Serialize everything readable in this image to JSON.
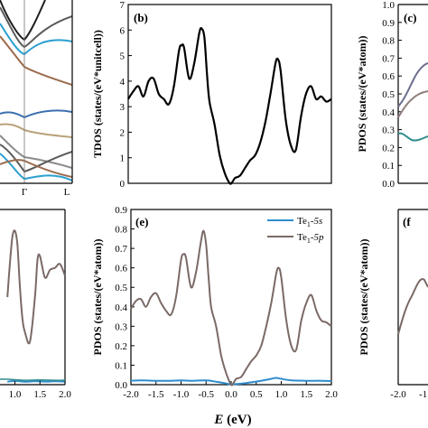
{
  "figure": {
    "xlabel_symbol": "E",
    "xlabel_unit": " (eV)"
  },
  "chart_data": [
    {
      "id": "a_bands",
      "type": "line",
      "panel_label": "",
      "xtick_labels": [
        "Γ",
        "L"
      ],
      "series_colors": [
        "#5b5b5b",
        "#2a9fd0",
        "#9c6b4e",
        "#1f1f1f",
        "#3b6fb0",
        "#b9a27a",
        "#8a8a8a"
      ]
    },
    {
      "id": "b_tdos",
      "type": "line",
      "panel_label": "(b)",
      "ylabel": "TDOS (states/(eV*unitcell))",
      "xlim": [
        -2.0,
        2.0
      ],
      "ylim": [
        0,
        7
      ],
      "yticks": [
        "0",
        "1",
        "2",
        "3",
        "4",
        "5",
        "6",
        "7"
      ],
      "series": [
        {
          "color": "#000000",
          "x": [
            -2.0,
            -1.9,
            -1.8,
            -1.7,
            -1.6,
            -1.5,
            -1.4,
            -1.3,
            -1.2,
            -1.1,
            -1.0,
            -0.95,
            -0.9,
            -0.8,
            -0.7,
            -0.6,
            -0.55,
            -0.5,
            -0.45,
            -0.4,
            -0.3,
            -0.2,
            -0.1,
            0.0,
            0.05,
            0.1,
            0.2,
            0.3,
            0.4,
            0.5,
            0.6,
            0.7,
            0.8,
            0.9,
            0.95,
            1.0,
            1.1,
            1.2,
            1.3,
            1.4,
            1.5,
            1.6,
            1.7,
            1.8,
            1.9,
            2.0
          ],
          "y": [
            3.3,
            3.6,
            3.8,
            3.4,
            4.0,
            4.1,
            3.5,
            3.3,
            3.1,
            3.8,
            5.2,
            5.4,
            5.3,
            4.1,
            4.7,
            5.9,
            6.05,
            5.7,
            4.3,
            3.2,
            2.3,
            1.1,
            0.4,
            0.0,
            0.05,
            0.2,
            0.3,
            0.6,
            0.9,
            1.1,
            1.6,
            2.4,
            3.5,
            4.7,
            4.85,
            4.4,
            2.5,
            1.5,
            1.3,
            2.6,
            3.5,
            3.8,
            3.3,
            3.4,
            3.2,
            3.3
          ]
        }
      ]
    },
    {
      "id": "c_pdos",
      "type": "line",
      "panel_label": "(c)",
      "ylabel": "PDOS (states/(eV*atom))",
      "ylim": [
        0,
        1.0
      ],
      "yticks": [
        "0.0",
        "0.1",
        "0.2",
        "0.3",
        "0.4",
        "0.5",
        "0.6",
        "0.7",
        "0.8",
        "0.9",
        "1.0"
      ]
    },
    {
      "id": "d_pdos",
      "type": "line",
      "panel_label": "",
      "xlim": [
        -2.0,
        2.0
      ],
      "xtick_labels": [
        "1.0",
        "1.5",
        "2.0"
      ],
      "series": [
        {
          "color": "#7a6a66",
          "x": [
            0.85,
            0.9,
            0.95,
            1.0,
            1.05,
            1.1,
            1.15,
            1.2,
            1.3,
            1.4,
            1.45,
            1.5,
            1.6,
            1.7,
            1.8,
            1.9,
            2.0
          ],
          "y": [
            0.45,
            0.62,
            0.76,
            0.79,
            0.72,
            0.5,
            0.34,
            0.27,
            0.22,
            0.45,
            0.64,
            0.66,
            0.55,
            0.59,
            0.6,
            0.62,
            0.56
          ]
        },
        {
          "color": "#2f8ccc",
          "x": [
            0.85,
            1.0,
            1.2,
            1.4,
            1.6,
            1.8,
            2.0
          ],
          "y": [
            0.015,
            0.02,
            0.015,
            0.018,
            0.016,
            0.017,
            0.016
          ]
        }
      ]
    },
    {
      "id": "e_pdos",
      "type": "line",
      "panel_label": "(e)",
      "ylabel": "PDOS (states/(eV*atom))",
      "xlim": [
        -2.0,
        2.0
      ],
      "ylim": [
        0,
        0.9
      ],
      "yticks": [
        "0.0",
        "0.1",
        "0.2",
        "0.3",
        "0.4",
        "0.5",
        "0.6",
        "0.7",
        "0.8",
        "0.9"
      ],
      "xticks": [
        "-2.0",
        "-1.5",
        "-1.0",
        "-0.5",
        "0.0",
        "0.5",
        "1.0",
        "1.5",
        "2.0"
      ],
      "legend_position": "top-right",
      "series": [
        {
          "name_main": "Te",
          "name_sub": "1",
          "name_tail": "-5s",
          "color": "#2f8ccc",
          "x": [
            -2.0,
            -1.8,
            -1.5,
            -1.2,
            -1.0,
            -0.8,
            -0.5,
            -0.3,
            -0.1,
            0.0,
            0.2,
            0.4,
            0.6,
            0.8,
            0.9,
            1.0,
            1.2,
            1.5,
            1.8,
            2.0
          ],
          "y": [
            0.02,
            0.022,
            0.02,
            0.02,
            0.022,
            0.02,
            0.022,
            0.015,
            0.006,
            0.002,
            0.005,
            0.012,
            0.02,
            0.03,
            0.035,
            0.03,
            0.022,
            0.02,
            0.02,
            0.018
          ]
        },
        {
          "name_main": "Te",
          "name_sub": "1",
          "name_tail": "-5p",
          "color": "#7a6a66",
          "x": [
            -2.0,
            -1.9,
            -1.8,
            -1.7,
            -1.6,
            -1.5,
            -1.4,
            -1.3,
            -1.2,
            -1.1,
            -1.0,
            -0.95,
            -0.9,
            -0.8,
            -0.7,
            -0.6,
            -0.55,
            -0.5,
            -0.45,
            -0.4,
            -0.3,
            -0.2,
            -0.1,
            0.0,
            0.05,
            0.1,
            0.2,
            0.3,
            0.4,
            0.5,
            0.6,
            0.7,
            0.8,
            0.9,
            0.95,
            1.0,
            1.1,
            1.2,
            1.3,
            1.4,
            1.5,
            1.6,
            1.7,
            1.8,
            1.9,
            2.0
          ],
          "y": [
            0.39,
            0.43,
            0.44,
            0.4,
            0.45,
            0.47,
            0.42,
            0.38,
            0.36,
            0.45,
            0.64,
            0.67,
            0.65,
            0.5,
            0.58,
            0.74,
            0.79,
            0.72,
            0.55,
            0.4,
            0.3,
            0.15,
            0.06,
            0.0,
            0.01,
            0.03,
            0.04,
            0.08,
            0.12,
            0.15,
            0.2,
            0.3,
            0.42,
            0.57,
            0.6,
            0.55,
            0.33,
            0.2,
            0.18,
            0.33,
            0.42,
            0.46,
            0.38,
            0.33,
            0.32,
            0.3
          ]
        }
      ]
    },
    {
      "id": "f_pdos",
      "type": "line",
      "panel_label": "(f",
      "ylabel": "PDOS (states/(eV*atom))",
      "xticks": [
        "-2.0",
        "-1."
      ]
    }
  ]
}
